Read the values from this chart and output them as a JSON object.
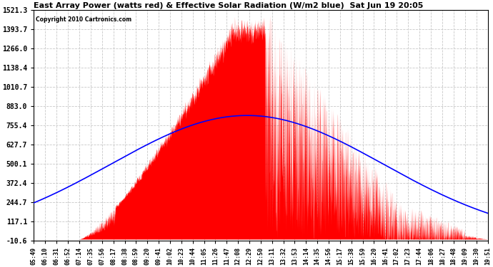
{
  "title": "East Array Power (watts red) & Effective Solar Radiation (W/m2 blue)  Sat Jun 19 20:05",
  "copyright": "Copyright 2010 Cartronics.com",
  "yticks": [
    1521.3,
    1393.7,
    1266.0,
    1138.4,
    1010.7,
    883.0,
    755.4,
    627.7,
    500.1,
    372.4,
    244.7,
    117.1,
    -10.6
  ],
  "ymin": -10.6,
  "ymax": 1521.3,
  "bg_color": "#ffffff",
  "plot_bg_color": "#ffffff",
  "grid_color": "#c8c8c8",
  "red_color": "#ff0000",
  "blue_color": "#0000ff",
  "xtick_labels": [
    "05:49",
    "06:10",
    "06:31",
    "06:52",
    "07:14",
    "07:35",
    "07:56",
    "08:17",
    "08:38",
    "08:59",
    "09:20",
    "09:41",
    "10:02",
    "10:23",
    "10:44",
    "11:05",
    "11:26",
    "11:47",
    "12:08",
    "12:29",
    "12:50",
    "13:11",
    "13:32",
    "13:53",
    "14:14",
    "14:35",
    "14:56",
    "15:17",
    "15:38",
    "15:59",
    "16:20",
    "16:41",
    "17:02",
    "17:23",
    "17:44",
    "18:06",
    "18:27",
    "18:48",
    "19:09",
    "19:30",
    "19:51"
  ]
}
